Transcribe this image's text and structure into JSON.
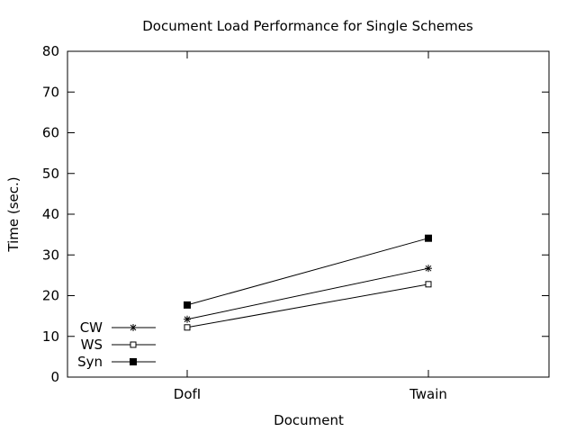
{
  "chart_data": {
    "type": "line",
    "title": "Document Load Performance for Single Schemes",
    "xlabel": "Document",
    "ylabel": "Time (sec.)",
    "categories": [
      "DofI",
      "Twain"
    ],
    "ylim": [
      0,
      80
    ],
    "yticks": [
      0,
      10,
      20,
      30,
      40,
      50,
      60,
      70,
      80
    ],
    "grid": false,
    "legend_position": "bottom-left",
    "series": [
      {
        "name": "CW",
        "marker": "asterisk",
        "values": [
          14.2,
          26.7
        ]
      },
      {
        "name": "WS",
        "marker": "open-square",
        "values": [
          12.2,
          22.8
        ]
      },
      {
        "name": "Syn",
        "marker": "filled-square",
        "values": [
          17.7,
          34.1
        ]
      }
    ],
    "colors": {
      "line": "#000000",
      "background": "#ffffff"
    }
  }
}
